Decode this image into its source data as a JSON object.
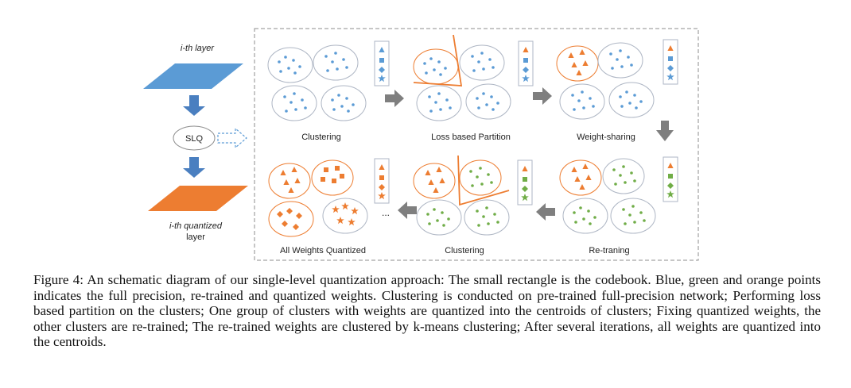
{
  "colors": {
    "full_precision": "#5b9bd5",
    "quantized": "#ed7d31",
    "retrained": "#70ad47",
    "outline": "#aeb6c4",
    "arrow": "#7f7f7f",
    "layer_arrow": "#4a7fc0"
  },
  "left": {
    "top_label": "i-th layer",
    "slq_label": "SLQ",
    "bottom_label_line1": "i-th quantized",
    "bottom_label_line2": "layer"
  },
  "stages": {
    "clustering_1": "Clustering",
    "loss_partition": "Loss based Partition",
    "weight_sharing": "Weight-sharing",
    "retraining": "Re-traning",
    "clustering_2": "Clustering",
    "all_quantized": "All Weights Quantized"
  },
  "ellipsis": "...",
  "codebook_shapes": [
    "triangle-icon",
    "square-icon",
    "diamond-icon",
    "star-icon"
  ],
  "caption": "Figure 4: An schematic diagram of our single-level quantization approach: The small rectangle is the codebook. Blue, green and orange points indicates the full precision, re-trained and quantized weights. Clustering is conducted on pre-trained full-precision network; Performing loss based partition on the clusters; One group of clusters with weights are quantized into the centroids of clusters; Fixing quantized weights, the other clusters are re-trained; The re-trained weights are clustered by k-means clustering; After several iterations, all weights are quantized into the centroids."
}
